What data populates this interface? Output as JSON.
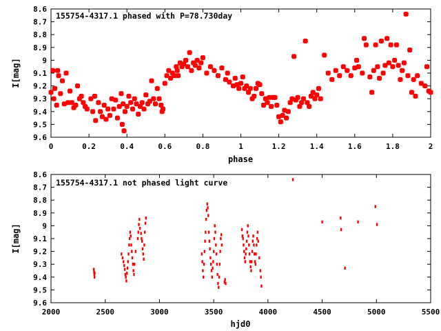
{
  "chart_data": [
    {
      "type": "scatter",
      "title": "155754-4317.1 phased with P=78.730day",
      "xlabel": "phase",
      "ylabel": "I[mag]",
      "xlim": [
        0,
        2
      ],
      "ylim": [
        9.6,
        8.6
      ],
      "y_inverted": true,
      "xticks": [
        0,
        0.2,
        0.4,
        0.6,
        0.8,
        1,
        1.2,
        1.4,
        1.6,
        1.8,
        2
      ],
      "xtick_labels": [
        "0",
        "0.2",
        "0.4",
        "0.6",
        "0.8",
        "1",
        "1.2",
        "1.4",
        "1.6",
        "1.8",
        "2"
      ],
      "yticks": [
        8.6,
        8.7,
        8.8,
        8.9,
        9.0,
        9.1,
        9.2,
        9.3,
        9.4,
        9.5,
        9.6
      ],
      "ytick_labels": [
        "8.6",
        "8.7",
        "8.8",
        "8.9",
        "9",
        "9.1",
        "9.2",
        "9.3",
        "9.4",
        "9.5",
        "9.6"
      ],
      "grid": false,
      "marker_color": "#ff0000",
      "points": [
        [
          0.0,
          9.25
        ],
        [
          0.01,
          9.08
        ],
        [
          0.015,
          9.3
        ],
        [
          0.02,
          9.22
        ],
        [
          0.03,
          9.35
        ],
        [
          0.035,
          9.08
        ],
        [
          0.04,
          9.12
        ],
        [
          0.05,
          9.26
        ],
        [
          0.06,
          9.16
        ],
        [
          0.07,
          9.34
        ],
        [
          0.08,
          9.1
        ],
        [
          0.09,
          9.33
        ],
        [
          0.1,
          9.24
        ],
        [
          0.11,
          9.33
        ],
        [
          0.12,
          9.37
        ],
        [
          0.13,
          9.35
        ],
        [
          0.14,
          9.2
        ],
        [
          0.15,
          9.3
        ],
        [
          0.16,
          9.28
        ],
        [
          0.17,
          9.33
        ],
        [
          0.18,
          9.36
        ],
        [
          0.19,
          9.38
        ],
        [
          0.21,
          9.3
        ],
        [
          0.22,
          9.4
        ],
        [
          0.23,
          9.28
        ],
        [
          0.235,
          9.47
        ],
        [
          0.25,
          9.33
        ],
        [
          0.26,
          9.4
        ],
        [
          0.27,
          9.44
        ],
        [
          0.28,
          9.35
        ],
        [
          0.29,
          9.46
        ],
        [
          0.3,
          9.38
        ],
        [
          0.31,
          9.43
        ],
        [
          0.32,
          9.3
        ],
        [
          0.33,
          9.38
        ],
        [
          0.34,
          9.31
        ],
        [
          0.35,
          9.45
        ],
        [
          0.36,
          9.36
        ],
        [
          0.37,
          9.26
        ],
        [
          0.375,
          9.5
        ],
        [
          0.38,
          9.34
        ],
        [
          0.385,
          9.55
        ],
        [
          0.39,
          9.4
        ],
        [
          0.4,
          9.36
        ],
        [
          0.41,
          9.28
        ],
        [
          0.42,
          9.33
        ],
        [
          0.43,
          9.38
        ],
        [
          0.44,
          9.3
        ],
        [
          0.45,
          9.34
        ],
        [
          0.46,
          9.42
        ],
        [
          0.47,
          9.36
        ],
        [
          0.48,
          9.33
        ],
        [
          0.49,
          9.38
        ],
        [
          0.5,
          9.27
        ],
        [
          0.51,
          9.34
        ],
        [
          0.52,
          9.32
        ],
        [
          0.53,
          9.16
        ],
        [
          0.54,
          9.3
        ],
        [
          0.55,
          9.34
        ],
        [
          0.56,
          9.22
        ],
        [
          0.57,
          9.3
        ],
        [
          0.58,
          9.35
        ],
        [
          0.585,
          9.4
        ],
        [
          0.59,
          9.38
        ],
        [
          0.6,
          9.18
        ],
        [
          0.61,
          9.12
        ],
        [
          0.62,
          9.08
        ],
        [
          0.63,
          9.14
        ],
        [
          0.64,
          9.1
        ],
        [
          0.65,
          9.12
        ],
        [
          0.66,
          9.05
        ],
        [
          0.665,
          9.08
        ],
        [
          0.67,
          9.12
        ],
        [
          0.68,
          9.02
        ],
        [
          0.69,
          9.05
        ],
        [
          0.7,
          9.03
        ],
        [
          0.71,
          9.0
        ],
        [
          0.72,
          9.05
        ],
        [
          0.73,
          8.94
        ],
        [
          0.74,
          9.08
        ],
        [
          0.75,
          9.02
        ],
        [
          0.76,
          9.04
        ],
        [
          0.77,
          9.0
        ],
        [
          0.78,
          9.06
        ],
        [
          0.79,
          9.02
        ],
        [
          0.8,
          8.98
        ],
        [
          0.82,
          9.1
        ],
        [
          0.84,
          9.05
        ],
        [
          0.86,
          9.08
        ],
        [
          0.88,
          9.12
        ],
        [
          0.9,
          9.06
        ],
        [
          0.92,
          9.15
        ],
        [
          0.93,
          9.1
        ],
        [
          0.94,
          9.17
        ],
        [
          0.96,
          9.2
        ],
        [
          0.97,
          9.14
        ],
        [
          0.98,
          9.19
        ],
        [
          0.99,
          9.22
        ],
        [
          1.0,
          9.18
        ],
        [
          1.01,
          9.13
        ],
        [
          1.02,
          9.22
        ],
        [
          1.03,
          9.2
        ],
        [
          1.04,
          9.25
        ],
        [
          1.05,
          9.22
        ],
        [
          1.06,
          9.3
        ],
        [
          1.07,
          9.28
        ],
        [
          1.08,
          9.22
        ],
        [
          1.09,
          9.18
        ],
        [
          1.1,
          9.19
        ],
        [
          1.11,
          9.26
        ],
        [
          1.12,
          9.35
        ],
        [
          1.13,
          9.3
        ],
        [
          1.14,
          9.33
        ],
        [
          1.15,
          9.29
        ],
        [
          1.16,
          9.36
        ],
        [
          1.17,
          9.29
        ],
        [
          1.18,
          9.29
        ],
        [
          1.19,
          9.35
        ],
        [
          1.2,
          9.44
        ],
        [
          1.21,
          9.48
        ],
        [
          1.22,
          9.43
        ],
        [
          1.23,
          9.39
        ],
        [
          1.24,
          9.45
        ],
        [
          1.25,
          9.4
        ],
        [
          1.26,
          9.33
        ],
        [
          1.27,
          9.3
        ],
        [
          1.28,
          8.97
        ],
        [
          1.29,
          9.31
        ],
        [
          1.3,
          9.29
        ],
        [
          1.31,
          9.36
        ],
        [
          1.32,
          9.33
        ],
        [
          1.33,
          9.3
        ],
        [
          1.34,
          8.85
        ],
        [
          1.35,
          9.33
        ],
        [
          1.36,
          9.36
        ],
        [
          1.37,
          9.28
        ],
        [
          1.38,
          9.25
        ],
        [
          1.39,
          9.3
        ],
        [
          1.4,
          9.27
        ],
        [
          1.41,
          9.22
        ],
        [
          1.42,
          9.3
        ],
        [
          1.44,
          8.96
        ],
        [
          1.46,
          9.1
        ],
        [
          1.48,
          9.15
        ],
        [
          1.5,
          9.08
        ],
        [
          1.52,
          9.12
        ],
        [
          1.54,
          9.05
        ],
        [
          1.56,
          9.08
        ],
        [
          1.58,
          9.12
        ],
        [
          1.6,
          9.06
        ],
        [
          1.61,
          9.0
        ],
        [
          1.62,
          9.05
        ],
        [
          1.64,
          9.1
        ],
        [
          1.65,
          8.83
        ],
        [
          1.66,
          8.88
        ],
        [
          1.68,
          9.13
        ],
        [
          1.69,
          9.25
        ],
        [
          1.7,
          9.08
        ],
        [
          1.71,
          8.88
        ],
        [
          1.72,
          9.05
        ],
        [
          1.73,
          9.14
        ],
        [
          1.74,
          8.85
        ],
        [
          1.75,
          9.1
        ],
        [
          1.76,
          9.04
        ],
        [
          1.77,
          8.83
        ],
        [
          1.78,
          9.02
        ],
        [
          1.79,
          8.88
        ],
        [
          1.8,
          9.05
        ],
        [
          1.81,
          9.0
        ],
        [
          1.82,
          8.88
        ],
        [
          1.83,
          9.04
        ],
        [
          1.84,
          9.15
        ],
        [
          1.85,
          9.08
        ],
        [
          1.86,
          9.02
        ],
        [
          1.87,
          8.64
        ],
        [
          1.88,
          9.12
        ],
        [
          1.89,
          8.92
        ],
        [
          1.9,
          9.25
        ],
        [
          1.91,
          9.15
        ],
        [
          1.92,
          9.28
        ],
        [
          1.93,
          9.12
        ],
        [
          1.95,
          9.18
        ],
        [
          1.97,
          9.2
        ],
        [
          1.98,
          9.05
        ],
        [
          1.99,
          9.24
        ],
        [
          2.0,
          9.25
        ]
      ]
    },
    {
      "type": "scatter",
      "title": "155754-4317.1 not phased light curve",
      "xlabel": "hjd0",
      "ylabel": "I[mag]",
      "xlim": [
        2000,
        5500
      ],
      "ylim": [
        9.6,
        8.6
      ],
      "y_inverted": true,
      "xticks": [
        2000,
        2500,
        3000,
        3500,
        4000,
        4500,
        5000,
        5500
      ],
      "xtick_labels": [
        "2000",
        "2500",
        "3000",
        "3500",
        "4000",
        "4500",
        "5000",
        "5500"
      ],
      "yticks": [
        8.6,
        8.7,
        8.8,
        8.9,
        9.0,
        9.1,
        9.2,
        9.3,
        9.4,
        9.5,
        9.6
      ],
      "ytick_labels": [
        "8.6",
        "8.7",
        "8.8",
        "8.9",
        "9",
        "9.1",
        "9.2",
        "9.3",
        "9.4",
        "9.5",
        "9.6"
      ],
      "grid": false,
      "marker_color": "#ff0000",
      "points": [
        [
          2395,
          9.34
        ],
        [
          2397,
          9.36
        ],
        [
          2399,
          9.38
        ],
        [
          2401,
          9.4
        ],
        [
          2403,
          9.37
        ],
        [
          2650,
          9.22
        ],
        [
          2660,
          9.25
        ],
        [
          2668,
          9.28
        ],
        [
          2675,
          9.31
        ],
        [
          2680,
          9.34
        ],
        [
          2685,
          9.38
        ],
        [
          2690,
          9.4
        ],
        [
          2695,
          9.43
        ],
        [
          2700,
          9.37
        ],
        [
          2705,
          9.33
        ],
        [
          2710,
          9.28
        ],
        [
          2715,
          9.22
        ],
        [
          2720,
          9.15
        ],
        [
          2725,
          9.1
        ],
        [
          2730,
          9.05
        ],
        [
          2735,
          9.08
        ],
        [
          2740,
          9.15
        ],
        [
          2745,
          9.2
        ],
        [
          2750,
          9.25
        ],
        [
          2755,
          9.3
        ],
        [
          2760,
          9.35
        ],
        [
          2765,
          9.38
        ],
        [
          2770,
          9.3
        ],
        [
          2780,
          9.2
        ],
        [
          2800,
          9.1
        ],
        [
          2805,
          9.05
        ],
        [
          2810,
          8.99
        ],
        [
          2815,
          8.95
        ],
        [
          2820,
          9.02
        ],
        [
          2830,
          9.06
        ],
        [
          2835,
          9.1
        ],
        [
          2840,
          9.12
        ],
        [
          2845,
          9.18
        ],
        [
          2850,
          9.22
        ],
        [
          2855,
          9.26
        ],
        [
          2860,
          9.15
        ],
        [
          2865,
          9.05
        ],
        [
          2870,
          8.98
        ],
        [
          2875,
          8.94
        ],
        [
          3390,
          9.22
        ],
        [
          3395,
          9.28
        ],
        [
          3400,
          9.35
        ],
        [
          3405,
          9.4
        ],
        [
          3410,
          9.3
        ],
        [
          3415,
          9.2
        ],
        [
          3420,
          9.12
        ],
        [
          3425,
          9.05
        ],
        [
          3430,
          8.95
        ],
        [
          3435,
          8.88
        ],
        [
          3440,
          8.83
        ],
        [
          3445,
          8.86
        ],
        [
          3450,
          8.92
        ],
        [
          3455,
          9.05
        ],
        [
          3460,
          9.12
        ],
        [
          3465,
          9.18
        ],
        [
          3470,
          9.25
        ],
        [
          3475,
          9.3
        ],
        [
          3480,
          9.35
        ],
        [
          3485,
          9.4
        ],
        [
          3490,
          9.33
        ],
        [
          3495,
          9.28
        ],
        [
          3500,
          9.2
        ],
        [
          3505,
          9.1
        ],
        [
          3510,
          9.0
        ],
        [
          3515,
          9.05
        ],
        [
          3520,
          9.15
        ],
        [
          3525,
          9.22
        ],
        [
          3530,
          9.3
        ],
        [
          3535,
          9.38
        ],
        [
          3540,
          9.45
        ],
        [
          3545,
          9.48
        ],
        [
          3550,
          9.4
        ],
        [
          3555,
          9.3
        ],
        [
          3560,
          9.2
        ],
        [
          3565,
          9.1
        ],
        [
          3570,
          9.07
        ],
        [
          3575,
          9.15
        ],
        [
          3600,
          9.44
        ],
        [
          3605,
          9.42
        ],
        [
          3610,
          9.45
        ],
        [
          3760,
          9.03
        ],
        [
          3765,
          9.08
        ],
        [
          3770,
          9.1
        ],
        [
          3775,
          9.15
        ],
        [
          3780,
          9.2
        ],
        [
          3785,
          9.25
        ],
        [
          3790,
          9.28
        ],
        [
          3795,
          9.22
        ],
        [
          3800,
          9.18
        ],
        [
          3805,
          9.12
        ],
        [
          3810,
          9.05
        ],
        [
          3815,
          9.0
        ],
        [
          3820,
          9.08
        ],
        [
          3825,
          9.15
        ],
        [
          3830,
          9.22
        ],
        [
          3835,
          9.28
        ],
        [
          3840,
          9.32
        ],
        [
          3845,
          9.35
        ],
        [
          3850,
          9.28
        ],
        [
          3855,
          9.2
        ],
        [
          3860,
          9.12
        ],
        [
          3865,
          9.08
        ],
        [
          3870,
          9.15
        ],
        [
          3875,
          9.22
        ],
        [
          3880,
          9.28
        ],
        [
          3885,
          9.3
        ],
        [
          3890,
          9.22
        ],
        [
          3895,
          9.15
        ],
        [
          3900,
          9.1
        ],
        [
          3905,
          9.05
        ],
        [
          3910,
          9.12
        ],
        [
          3920,
          9.25
        ],
        [
          3930,
          9.35
        ],
        [
          3935,
          9.4
        ],
        [
          3940,
          9.47
        ],
        [
          4230,
          8.64
        ],
        [
          4500,
          8.97
        ],
        [
          4670,
          8.94
        ],
        [
          4675,
          9.03
        ],
        [
          4710,
          9.33
        ],
        [
          4830,
          8.97
        ],
        [
          4990,
          8.85
        ],
        [
          5005,
          8.99
        ]
      ]
    }
  ]
}
